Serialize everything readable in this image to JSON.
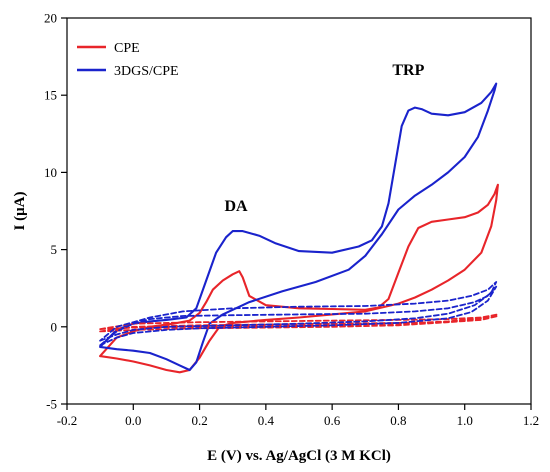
{
  "chart_data": {
    "type": "line",
    "title": "",
    "xlabel": "E (V) vs. Ag/AgCl (3 M KCl)",
    "ylabel": "I (μA)",
    "xlim": [
      -0.2,
      1.2
    ],
    "ylim": [
      -5,
      20
    ],
    "x_ticks": [
      "-0.2",
      "0.0",
      "0.2",
      "0.4",
      "0.6",
      "0.8",
      "1.0",
      "1.2"
    ],
    "y_ticks": [
      "-5",
      "0",
      "5",
      "10",
      "15",
      "20"
    ],
    "grid": false,
    "legend_position": "top-left",
    "annotations": [
      {
        "text": "DA",
        "x": 0.31,
        "y": 7.5
      },
      {
        "text": "TRP",
        "x": 0.83,
        "y": 16.3
      }
    ],
    "series": [
      {
        "name": "CPE",
        "color": "#e8252a",
        "style": "solid",
        "points": [
          [
            -0.1,
            -1.9
          ],
          [
            -0.05,
            -2.05
          ],
          [
            0.0,
            -2.25
          ],
          [
            0.05,
            -2.5
          ],
          [
            0.1,
            -2.8
          ],
          [
            0.14,
            -2.95
          ],
          [
            0.17,
            -2.8
          ],
          [
            0.2,
            -2.0
          ],
          [
            0.23,
            -0.9
          ],
          [
            0.26,
            0.0
          ],
          [
            0.3,
            0.25
          ],
          [
            0.4,
            0.45
          ],
          [
            0.5,
            0.6
          ],
          [
            0.6,
            0.8
          ],
          [
            0.7,
            1.0
          ],
          [
            0.8,
            1.5
          ],
          [
            0.85,
            1.9
          ],
          [
            0.9,
            2.4
          ],
          [
            0.95,
            3.0
          ],
          [
            1.0,
            3.7
          ],
          [
            1.05,
            4.8
          ],
          [
            1.08,
            6.5
          ],
          [
            1.095,
            8.2
          ],
          [
            1.1,
            9.2
          ],
          [
            1.09,
            8.6
          ],
          [
            1.07,
            7.9
          ],
          [
            1.04,
            7.4
          ],
          [
            1.0,
            7.1
          ],
          [
            0.95,
            6.95
          ],
          [
            0.9,
            6.8
          ],
          [
            0.86,
            6.4
          ],
          [
            0.83,
            5.2
          ],
          [
            0.8,
            3.5
          ],
          [
            0.77,
            1.8
          ],
          [
            0.74,
            1.25
          ],
          [
            0.7,
            1.1
          ],
          [
            0.6,
            1.15
          ],
          [
            0.5,
            1.2
          ],
          [
            0.4,
            1.4
          ],
          [
            0.35,
            2.0
          ],
          [
            0.33,
            3.2
          ],
          [
            0.32,
            3.6
          ],
          [
            0.3,
            3.4
          ],
          [
            0.27,
            3.0
          ],
          [
            0.24,
            2.4
          ],
          [
            0.22,
            1.6
          ],
          [
            0.2,
            0.9
          ],
          [
            0.17,
            0.4
          ],
          [
            0.12,
            0.2
          ],
          [
            0.05,
            0.0
          ],
          [
            0.0,
            -0.3
          ],
          [
            -0.05,
            -0.7
          ],
          [
            -0.1,
            -1.9
          ]
        ]
      },
      {
        "name": "3DGS/CPE",
        "color": "#1a23cc",
        "style": "solid",
        "points": [
          [
            -0.1,
            -1.3
          ],
          [
            -0.05,
            -1.45
          ],
          [
            0.0,
            -1.55
          ],
          [
            0.05,
            -1.7
          ],
          [
            0.1,
            -2.1
          ],
          [
            0.14,
            -2.5
          ],
          [
            0.17,
            -2.8
          ],
          [
            0.19,
            -2.3
          ],
          [
            0.21,
            -1.0
          ],
          [
            0.23,
            0.2
          ],
          [
            0.27,
            0.8
          ],
          [
            0.35,
            1.6
          ],
          [
            0.45,
            2.3
          ],
          [
            0.55,
            2.9
          ],
          [
            0.65,
            3.7
          ],
          [
            0.7,
            4.6
          ],
          [
            0.75,
            6.0
          ],
          [
            0.8,
            7.6
          ],
          [
            0.85,
            8.5
          ],
          [
            0.9,
            9.2
          ],
          [
            0.95,
            10.0
          ],
          [
            1.0,
            11.0
          ],
          [
            1.04,
            12.3
          ],
          [
            1.07,
            14.0
          ],
          [
            1.09,
            15.3
          ],
          [
            1.095,
            15.75
          ],
          [
            1.08,
            15.2
          ],
          [
            1.05,
            14.5
          ],
          [
            1.0,
            13.9
          ],
          [
            0.95,
            13.7
          ],
          [
            0.9,
            13.8
          ],
          [
            0.87,
            14.1
          ],
          [
            0.85,
            14.2
          ],
          [
            0.83,
            14.0
          ],
          [
            0.81,
            13.0
          ],
          [
            0.79,
            10.5
          ],
          [
            0.77,
            8.0
          ],
          [
            0.75,
            6.5
          ],
          [
            0.72,
            5.6
          ],
          [
            0.68,
            5.2
          ],
          [
            0.6,
            4.8
          ],
          [
            0.5,
            4.9
          ],
          [
            0.43,
            5.4
          ],
          [
            0.38,
            5.9
          ],
          [
            0.33,
            6.2
          ],
          [
            0.3,
            6.2
          ],
          [
            0.28,
            5.8
          ],
          [
            0.25,
            4.8
          ],
          [
            0.22,
            3.0
          ],
          [
            0.19,
            1.2
          ],
          [
            0.16,
            0.6
          ],
          [
            0.1,
            0.45
          ],
          [
            0.05,
            0.35
          ],
          [
            0.0,
            0.2
          ],
          [
            -0.05,
            -0.2
          ],
          [
            -0.1,
            -1.3
          ]
        ]
      },
      {
        "name": "",
        "color": "#e8252a",
        "style": "dashed",
        "points": [
          [
            -0.1,
            -0.15
          ],
          [
            0.0,
            -0.05
          ],
          [
            0.2,
            0.0
          ],
          [
            0.4,
            0.05
          ],
          [
            0.6,
            0.1
          ],
          [
            0.8,
            0.2
          ],
          [
            0.95,
            0.35
          ],
          [
            1.05,
            0.55
          ],
          [
            1.1,
            0.8
          ],
          [
            1.05,
            0.6
          ],
          [
            0.95,
            0.5
          ],
          [
            0.8,
            0.45
          ],
          [
            0.6,
            0.4
          ],
          [
            0.4,
            0.35
          ],
          [
            0.2,
            0.3
          ],
          [
            0.0,
            0.2
          ],
          [
            -0.1,
            -0.15
          ]
        ]
      },
      {
        "name": "",
        "color": "#e8252a",
        "style": "dashed",
        "points": [
          [
            -0.1,
            -0.3
          ],
          [
            0.0,
            -0.2
          ],
          [
            0.2,
            -0.1
          ],
          [
            0.4,
            -0.05
          ],
          [
            0.6,
            0.0
          ],
          [
            0.8,
            0.1
          ],
          [
            0.95,
            0.3
          ],
          [
            1.05,
            0.55
          ],
          [
            1.1,
            0.7
          ],
          [
            1.05,
            0.45
          ],
          [
            0.95,
            0.3
          ],
          [
            0.8,
            0.25
          ],
          [
            0.6,
            0.2
          ],
          [
            0.4,
            0.15
          ],
          [
            0.2,
            0.1
          ],
          [
            0.0,
            0.0
          ],
          [
            -0.1,
            -0.3
          ]
        ]
      },
      {
        "name": "",
        "color": "#1a23cc",
        "style": "dashed",
        "points": [
          [
            -0.1,
            -1.2
          ],
          [
            -0.05,
            -0.7
          ],
          [
            0.0,
            -0.4
          ],
          [
            0.1,
            -0.2
          ],
          [
            0.2,
            -0.1
          ],
          [
            0.4,
            0.0
          ],
          [
            0.6,
            0.1
          ],
          [
            0.8,
            0.25
          ],
          [
            0.95,
            0.55
          ],
          [
            1.02,
            0.95
          ],
          [
            1.07,
            1.7
          ],
          [
            1.095,
            2.6
          ],
          [
            1.07,
            2.0
          ],
          [
            1.03,
            1.6
          ],
          [
            0.95,
            1.2
          ],
          [
            0.85,
            1.0
          ],
          [
            0.7,
            0.85
          ],
          [
            0.5,
            0.8
          ],
          [
            0.3,
            0.75
          ],
          [
            0.15,
            0.7
          ],
          [
            0.05,
            0.5
          ],
          [
            0.0,
            0.2
          ],
          [
            -0.05,
            -0.3
          ],
          [
            -0.1,
            -1.2
          ]
        ]
      },
      {
        "name": "",
        "color": "#1a23cc",
        "style": "dashed",
        "points": [
          [
            -0.1,
            -0.9
          ],
          [
            -0.05,
            -0.5
          ],
          [
            0.0,
            -0.2
          ],
          [
            0.1,
            0.0
          ],
          [
            0.3,
            0.1
          ],
          [
            0.5,
            0.2
          ],
          [
            0.7,
            0.35
          ],
          [
            0.85,
            0.55
          ],
          [
            0.95,
            0.85
          ],
          [
            1.03,
            1.4
          ],
          [
            1.08,
            2.2
          ],
          [
            1.095,
            2.9
          ],
          [
            1.07,
            2.4
          ],
          [
            1.02,
            2.0
          ],
          [
            0.95,
            1.7
          ],
          [
            0.85,
            1.5
          ],
          [
            0.7,
            1.35
          ],
          [
            0.5,
            1.3
          ],
          [
            0.3,
            1.2
          ],
          [
            0.15,
            1.0
          ],
          [
            0.05,
            0.6
          ],
          [
            0.0,
            0.3
          ],
          [
            -0.05,
            0.0
          ],
          [
            -0.1,
            -0.9
          ]
        ]
      }
    ]
  }
}
